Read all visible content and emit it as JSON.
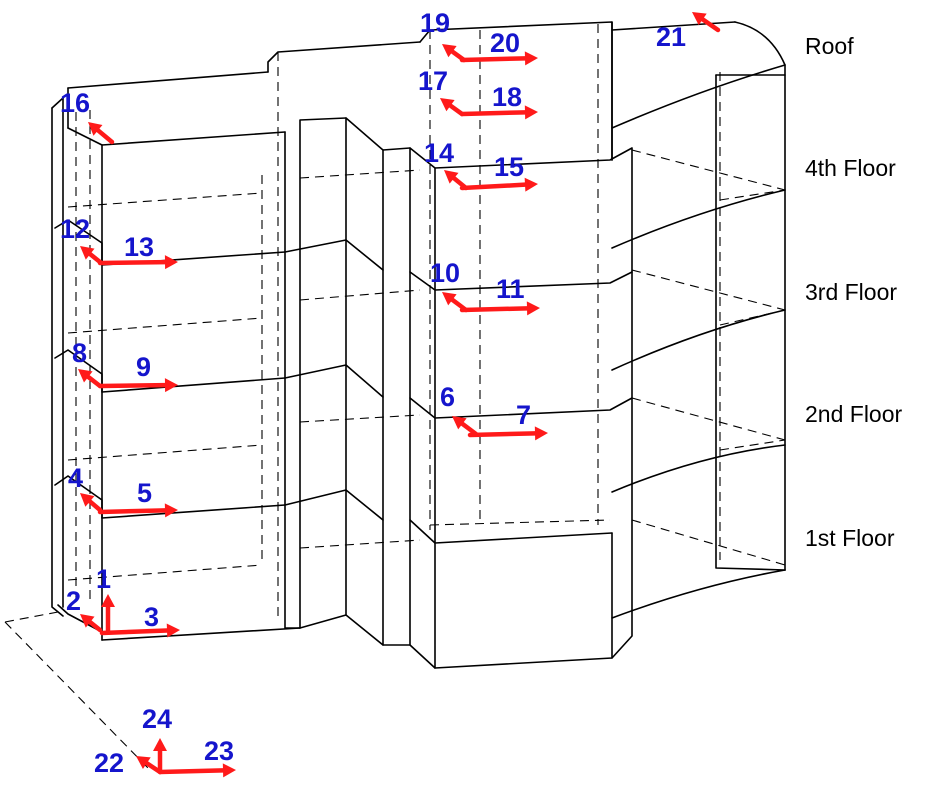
{
  "diagram": {
    "floor_labels": [
      {
        "id": "roof",
        "text": "Roof"
      },
      {
        "id": "4th",
        "text": "4th Floor"
      },
      {
        "id": "3rd",
        "text": "3rd Floor"
      },
      {
        "id": "2nd",
        "text": "2nd Floor"
      },
      {
        "id": "1st",
        "text": "1st Floor"
      }
    ],
    "sensor_numbers": [
      "1",
      "2",
      "3",
      "4",
      "5",
      "6",
      "7",
      "8",
      "9",
      "10",
      "11",
      "12",
      "13",
      "14",
      "15",
      "16",
      "17",
      "18",
      "19",
      "20",
      "21",
      "22",
      "23",
      "24"
    ],
    "colors": {
      "arrow": "#ff1a1a",
      "number": "#1515cc",
      "lines": "#000000"
    }
  }
}
